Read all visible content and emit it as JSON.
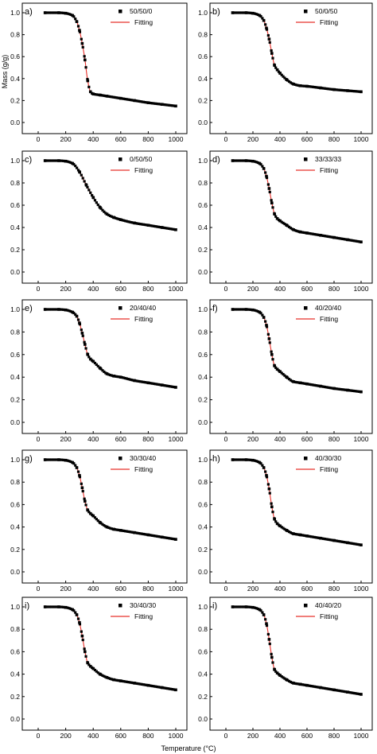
{
  "figure": {
    "y_axis_title": "Mass (g/g)",
    "x_axis_title": "Temperature (°C)",
    "fit_color": "#e8302a",
    "marker_color": "#000000"
  },
  "chart_data": [
    {
      "type": "scatter",
      "panel": "a)",
      "x_range": [
        0,
        1000
      ],
      "ylim": [
        0,
        1.0
      ],
      "xticks": [
        0,
        200,
        400,
        600,
        800,
        1000
      ],
      "yticks": [
        0.0,
        0.2,
        0.4,
        0.6,
        0.8,
        1.0
      ],
      "legend_placement": "top-right",
      "series": [
        {
          "name": "50/50/0",
          "style": "square-markers"
        },
        {
          "name": "Fitting",
          "style": "red-line"
        }
      ],
      "x": [
        50,
        150,
        200,
        250,
        280,
        300,
        320,
        340,
        360,
        380,
        400,
        450,
        500,
        600,
        700,
        800,
        900,
        1000
      ],
      "y": [
        1.0,
        1.0,
        0.995,
        0.975,
        0.92,
        0.84,
        0.72,
        0.57,
        0.38,
        0.28,
        0.26,
        0.25,
        0.24,
        0.22,
        0.2,
        0.18,
        0.165,
        0.15
      ]
    },
    {
      "type": "scatter",
      "panel": "b)",
      "x_range": [
        0,
        1000
      ],
      "ylim": [
        0,
        1.0
      ],
      "xticks": [
        0,
        200,
        400,
        600,
        800,
        1000
      ],
      "yticks": [
        0.0,
        0.2,
        0.4,
        0.6,
        0.8,
        1.0
      ],
      "legend_placement": "top-right",
      "series": [
        {
          "name": "50/0/50",
          "style": "square-markers"
        },
        {
          "name": "Fitting",
          "style": "red-line"
        }
      ],
      "x": [
        50,
        150,
        200,
        250,
        280,
        300,
        320,
        340,
        360,
        380,
        400,
        450,
        500,
        550,
        600,
        700,
        800,
        900,
        1000
      ],
      "y": [
        1.0,
        1.0,
        0.995,
        0.975,
        0.93,
        0.86,
        0.76,
        0.63,
        0.52,
        0.48,
        0.45,
        0.39,
        0.35,
        0.335,
        0.33,
        0.315,
        0.3,
        0.29,
        0.28
      ]
    },
    {
      "type": "scatter",
      "panel": "c)",
      "x_range": [
        0,
        1000
      ],
      "ylim": [
        0,
        1.0
      ],
      "xticks": [
        0,
        200,
        400,
        600,
        800,
        1000
      ],
      "yticks": [
        0.0,
        0.2,
        0.4,
        0.6,
        0.8,
        1.0
      ],
      "legend_placement": "top-right",
      "series": [
        {
          "name": "0/50/50",
          "style": "square-markers"
        },
        {
          "name": "Fitting",
          "style": "red-line"
        }
      ],
      "x": [
        50,
        150,
        200,
        250,
        300,
        350,
        400,
        450,
        500,
        550,
        600,
        700,
        800,
        900,
        1000
      ],
      "y": [
        1.0,
        1.0,
        0.995,
        0.975,
        0.9,
        0.78,
        0.67,
        0.58,
        0.52,
        0.49,
        0.47,
        0.44,
        0.42,
        0.4,
        0.38
      ]
    },
    {
      "type": "scatter",
      "panel": "d)",
      "x_range": [
        0,
        1000
      ],
      "ylim": [
        0,
        1.0
      ],
      "xticks": [
        0,
        200,
        400,
        600,
        800,
        1000
      ],
      "yticks": [
        0.0,
        0.2,
        0.4,
        0.6,
        0.8,
        1.0
      ],
      "legend_placement": "top-right",
      "series": [
        {
          "name": "33/33/33",
          "style": "square-markers"
        },
        {
          "name": "Fitting",
          "style": "red-line"
        }
      ],
      "x": [
        50,
        150,
        200,
        250,
        280,
        300,
        320,
        340,
        360,
        380,
        400,
        450,
        500,
        550,
        600,
        700,
        800,
        900,
        1000
      ],
      "y": [
        1.0,
        1.0,
        0.995,
        0.975,
        0.93,
        0.86,
        0.75,
        0.62,
        0.52,
        0.48,
        0.46,
        0.42,
        0.38,
        0.36,
        0.35,
        0.33,
        0.31,
        0.29,
        0.27
      ]
    },
    {
      "type": "scatter",
      "panel": "e)",
      "x_range": [
        0,
        1000
      ],
      "ylim": [
        0,
        1.0
      ],
      "xticks": [
        0,
        200,
        400,
        600,
        800,
        1000
      ],
      "yticks": [
        0.0,
        0.2,
        0.4,
        0.6,
        0.8,
        1.0
      ],
      "legend_placement": "top-right",
      "series": [
        {
          "name": "20/40/40",
          "style": "square-markers"
        },
        {
          "name": "Fitting",
          "style": "red-line"
        }
      ],
      "x": [
        50,
        150,
        200,
        250,
        280,
        300,
        320,
        340,
        360,
        380,
        400,
        450,
        500,
        550,
        600,
        700,
        800,
        900,
        1000
      ],
      "y": [
        1.0,
        1.0,
        0.995,
        0.975,
        0.94,
        0.88,
        0.79,
        0.69,
        0.6,
        0.56,
        0.54,
        0.48,
        0.43,
        0.41,
        0.4,
        0.37,
        0.35,
        0.33,
        0.31
      ]
    },
    {
      "type": "scatter",
      "panel": "f)",
      "x_range": [
        0,
        1000
      ],
      "ylim": [
        0,
        1.0
      ],
      "xticks": [
        0,
        200,
        400,
        600,
        800,
        1000
      ],
      "yticks": [
        0.0,
        0.2,
        0.4,
        0.6,
        0.8,
        1.0
      ],
      "legend_placement": "top-right",
      "series": [
        {
          "name": "40/20/40",
          "style": "square-markers"
        },
        {
          "name": "Fitting",
          "style": "red-line"
        }
      ],
      "x": [
        50,
        150,
        200,
        250,
        280,
        300,
        320,
        340,
        360,
        380,
        400,
        450,
        500,
        550,
        600,
        700,
        800,
        900,
        1000
      ],
      "y": [
        1.0,
        1.0,
        0.995,
        0.975,
        0.93,
        0.86,
        0.74,
        0.6,
        0.5,
        0.47,
        0.45,
        0.4,
        0.36,
        0.35,
        0.34,
        0.32,
        0.3,
        0.285,
        0.27
      ]
    },
    {
      "type": "scatter",
      "panel": "g)",
      "x_range": [
        0,
        1000
      ],
      "ylim": [
        0,
        1.0
      ],
      "xticks": [
        0,
        200,
        400,
        600,
        800,
        1000
      ],
      "yticks": [
        0.0,
        0.2,
        0.4,
        0.6,
        0.8,
        1.0
      ],
      "legend_placement": "top-right",
      "series": [
        {
          "name": "30/30/40",
          "style": "square-markers"
        },
        {
          "name": "Fitting",
          "style": "red-line"
        }
      ],
      "x": [
        50,
        150,
        200,
        250,
        280,
        300,
        320,
        340,
        360,
        380,
        400,
        450,
        500,
        550,
        600,
        700,
        800,
        900,
        1000
      ],
      "y": [
        1.0,
        1.0,
        0.995,
        0.975,
        0.93,
        0.86,
        0.75,
        0.63,
        0.55,
        0.52,
        0.5,
        0.44,
        0.4,
        0.38,
        0.37,
        0.35,
        0.33,
        0.31,
        0.29
      ]
    },
    {
      "type": "scatter",
      "panel": "h)",
      "x_range": [
        0,
        1000
      ],
      "ylim": [
        0,
        1.0
      ],
      "xticks": [
        0,
        200,
        400,
        600,
        800,
        1000
      ],
      "yticks": [
        0.0,
        0.2,
        0.4,
        0.6,
        0.8,
        1.0
      ],
      "legend_placement": "top-right",
      "series": [
        {
          "name": "40/30/30",
          "style": "square-markers"
        },
        {
          "name": "Fitting",
          "style": "red-line"
        }
      ],
      "x": [
        50,
        150,
        200,
        250,
        280,
        300,
        320,
        340,
        360,
        380,
        400,
        450,
        500,
        550,
        600,
        700,
        800,
        900,
        1000
      ],
      "y": [
        1.0,
        1.0,
        0.995,
        0.975,
        0.93,
        0.86,
        0.74,
        0.58,
        0.47,
        0.43,
        0.41,
        0.37,
        0.34,
        0.33,
        0.32,
        0.3,
        0.28,
        0.26,
        0.24
      ]
    },
    {
      "type": "scatter",
      "panel": "i)",
      "x_range": [
        0,
        1000
      ],
      "ylim": [
        0,
        1.0
      ],
      "xticks": [
        0,
        200,
        400,
        600,
        800,
        1000
      ],
      "yticks": [
        0.0,
        0.2,
        0.4,
        0.6,
        0.8,
        1.0
      ],
      "legend_placement": "top-right",
      "series": [
        {
          "name": "30/40/30",
          "style": "square-markers"
        },
        {
          "name": "Fitting",
          "style": "red-line"
        }
      ],
      "x": [
        50,
        150,
        200,
        250,
        280,
        300,
        320,
        340,
        360,
        380,
        400,
        450,
        500,
        550,
        600,
        700,
        800,
        900,
        1000
      ],
      "y": [
        1.0,
        1.0,
        0.995,
        0.975,
        0.93,
        0.86,
        0.74,
        0.6,
        0.5,
        0.47,
        0.45,
        0.4,
        0.37,
        0.35,
        0.34,
        0.32,
        0.3,
        0.28,
        0.26
      ]
    },
    {
      "type": "scatter",
      "panel": "i)",
      "x_range": [
        0,
        1000
      ],
      "ylim": [
        0,
        1.0
      ],
      "xticks": [
        0,
        200,
        400,
        600,
        800,
        1000
      ],
      "yticks": [
        0.0,
        0.2,
        0.4,
        0.6,
        0.8,
        1.0
      ],
      "legend_placement": "top-right",
      "series": [
        {
          "name": "40/40/20",
          "style": "square-markers"
        },
        {
          "name": "Fitting",
          "style": "red-line"
        }
      ],
      "x": [
        50,
        150,
        200,
        250,
        280,
        300,
        320,
        340,
        360,
        380,
        400,
        450,
        500,
        550,
        600,
        700,
        800,
        900,
        1000
      ],
      "y": [
        1.0,
        1.0,
        0.995,
        0.975,
        0.93,
        0.85,
        0.71,
        0.55,
        0.44,
        0.41,
        0.39,
        0.35,
        0.32,
        0.31,
        0.3,
        0.28,
        0.26,
        0.24,
        0.22
      ]
    }
  ]
}
